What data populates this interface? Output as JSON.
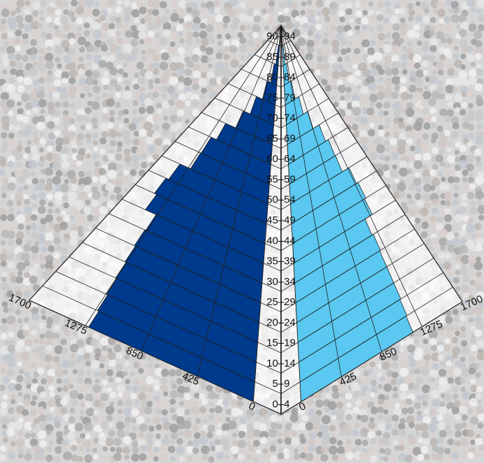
{
  "chart_data": {
    "type": "bar",
    "subtype": "3d-pyramid population pyramid",
    "categories": [
      "0-4",
      "5-9",
      "10-14",
      "15-19",
      "20-24",
      "25-29",
      "30-34",
      "35-39",
      "40-44",
      "45-49",
      "50-54",
      "55-59",
      "60-64",
      "65-69",
      "70-74",
      "75-79",
      "80-84",
      "85-89",
      "90-94"
    ],
    "series": [
      {
        "side": "left",
        "color": "#003a8c",
        "values": [
          1250,
          1260,
          1270,
          1280,
          1290,
          1300,
          1290,
          1420,
          1450,
          1410,
          1240,
          1230,
          1120,
          880,
          680,
          460,
          280,
          160,
          80
        ]
      },
      {
        "side": "right",
        "color": "#5ac8f0",
        "values": [
          1180,
          1190,
          1200,
          1200,
          1200,
          1210,
          1190,
          1310,
          1330,
          1300,
          1150,
          1140,
          1060,
          860,
          680,
          480,
          320,
          200,
          100
        ]
      }
    ],
    "axis_ticks": [
      "0",
      "425",
      "850",
      "1275",
      "1700"
    ],
    "xlim": [
      0,
      1700
    ],
    "grid": true,
    "background": "crowd photo"
  }
}
